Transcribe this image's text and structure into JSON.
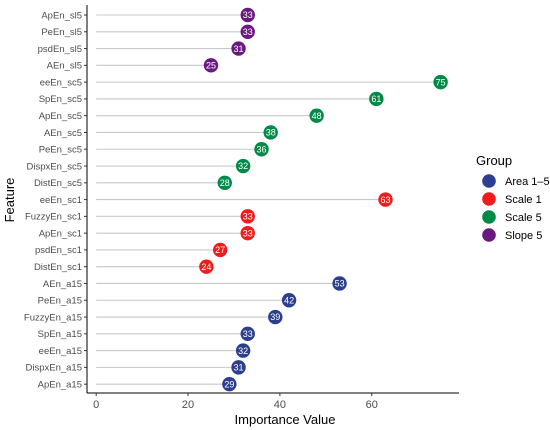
{
  "chart_data": {
    "type": "lollipop",
    "xlabel": "Importance Value",
    "ylabel": "Feature",
    "xlim": [
      -2,
      79
    ],
    "x_ticks": [
      0,
      20,
      40,
      60
    ],
    "grid": false,
    "legend": {
      "title": "Group",
      "placement": "right",
      "entries": [
        {
          "name": "Area 1–5",
          "color": "#2e3e8f"
        },
        {
          "name": "Scale 1",
          "color": "#ee1c1c"
        },
        {
          "name": "Scale 5",
          "color": "#008a47"
        },
        {
          "name": "Slope 5",
          "color": "#6a1a7f"
        }
      ]
    },
    "features": [
      {
        "name": "ApEn_sl5",
        "value": 33,
        "label": "33",
        "group": "Slope 5"
      },
      {
        "name": "PeEn_sl5",
        "value": 33,
        "label": "33",
        "group": "Slope 5"
      },
      {
        "name": "psdEn_sl5",
        "value": 31,
        "label": "31",
        "group": "Slope 5"
      },
      {
        "name": "AEn_sl5",
        "value": 25,
        "label": "25",
        "group": "Slope 5"
      },
      {
        "name": "eeEn_sc5",
        "value": 75,
        "label": "75",
        "group": "Scale 5"
      },
      {
        "name": "SpEn_sc5",
        "value": 61,
        "label": "61",
        "group": "Scale 5"
      },
      {
        "name": "ApEn_sc5",
        "value": 48,
        "label": "48",
        "group": "Scale 5"
      },
      {
        "name": "AEn_sc5",
        "value": 38,
        "label": "38",
        "group": "Scale 5"
      },
      {
        "name": "PeEn_sc5",
        "value": 36,
        "label": "36",
        "group": "Scale 5"
      },
      {
        "name": "DispxEn_sc5",
        "value": 32,
        "label": "32",
        "group": "Scale 5"
      },
      {
        "name": "DistEn_sc5",
        "value": 28,
        "label": "28",
        "group": "Scale 5"
      },
      {
        "name": "eeEn_sc1",
        "value": 63,
        "label": "63",
        "group": "Scale 1"
      },
      {
        "name": "FuzzyEn_sc1",
        "value": 33,
        "label": "33",
        "group": "Scale 1"
      },
      {
        "name": "ApEn_sc1",
        "value": 33,
        "label": "33",
        "group": "Scale 1"
      },
      {
        "name": "psdEn_sc1",
        "value": 27,
        "label": "27",
        "group": "Scale 1"
      },
      {
        "name": "DistEn_sc1",
        "value": 24,
        "label": "24",
        "group": "Scale 1"
      },
      {
        "name": "AEn_a15",
        "value": 53,
        "label": "53",
        "group": "Area 1–5"
      },
      {
        "name": "PeEn_a15",
        "value": 42,
        "label": "42",
        "group": "Area 1–5"
      },
      {
        "name": "FuzzyEn_a15",
        "value": 39,
        "label": "39",
        "group": "Area 1–5"
      },
      {
        "name": "SpEn_a15",
        "value": 33,
        "label": "33",
        "group": "Area 1–5"
      },
      {
        "name": "eeEn_a15",
        "value": 32,
        "label": "32",
        "group": "Area 1–5"
      },
      {
        "name": "DispxEn_a15",
        "value": 31,
        "label": "31",
        "group": "Area 1–5"
      },
      {
        "name": "ApEn_a15",
        "value": 29,
        "label": "29",
        "group": "Area 1–5"
      }
    ]
  }
}
